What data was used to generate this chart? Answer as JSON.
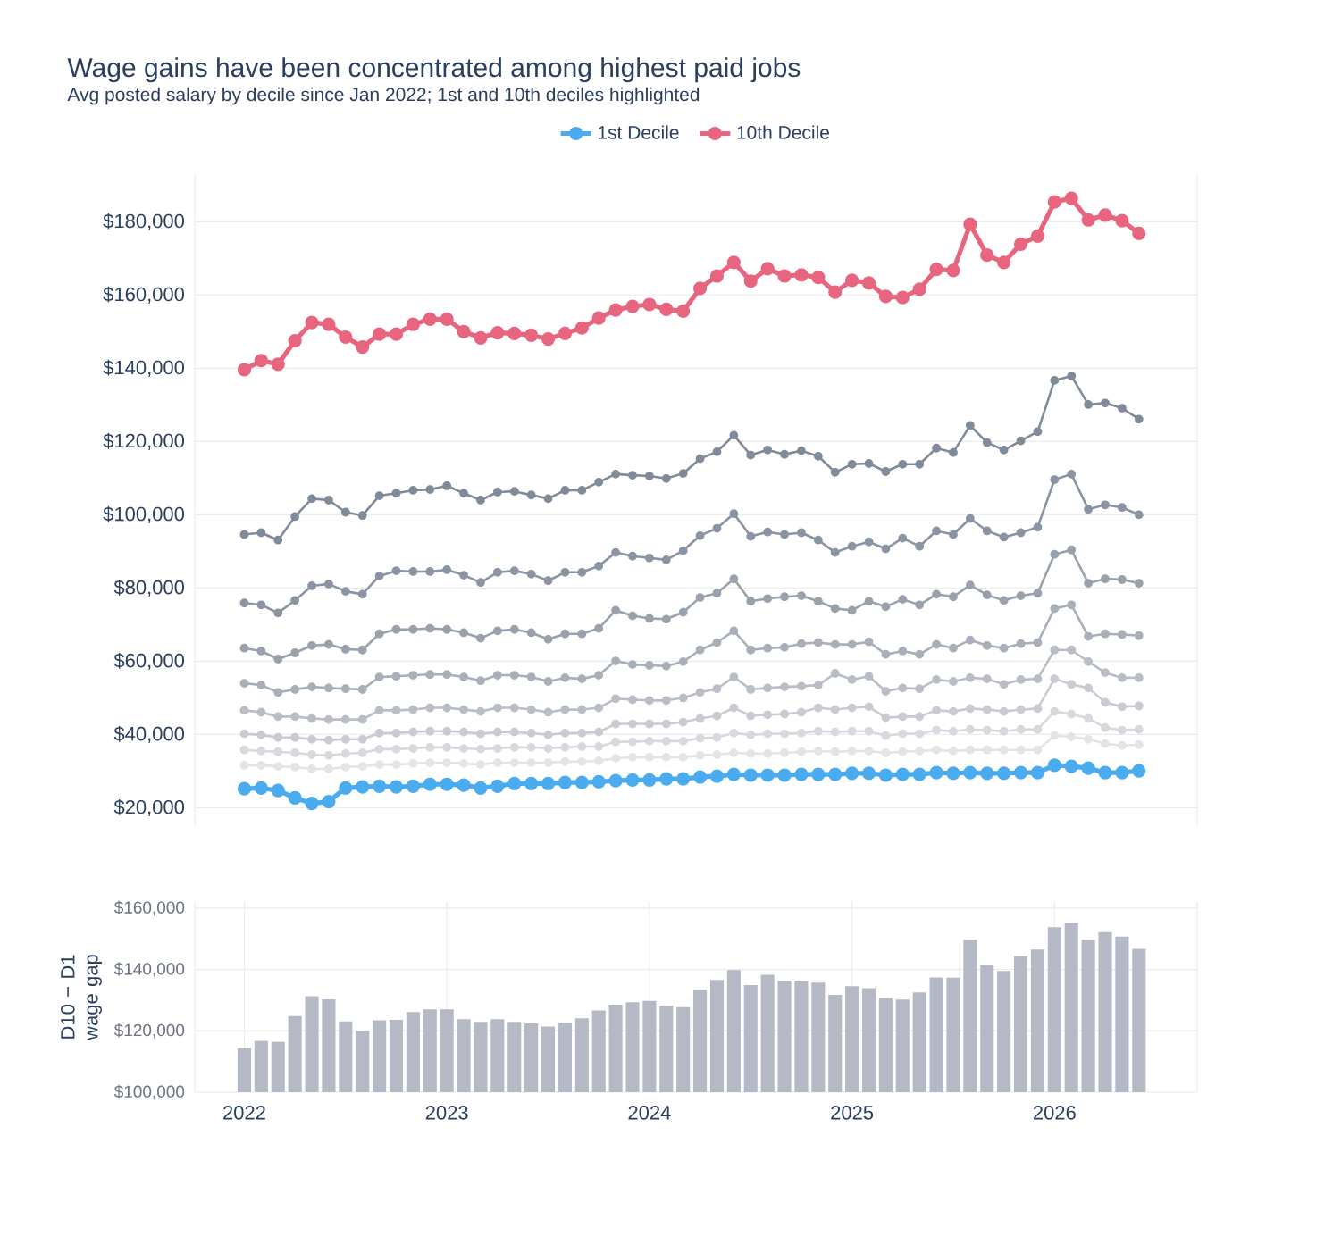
{
  "chart_data": [
    {
      "type": "line",
      "title": "Wage gains have been concentrated among highest paid jobs",
      "subtitle": "Avg posted salary by decile since Jan 2022; 1st and 10th deciles highlighted",
      "x": [
        "2022-01",
        "2022-02",
        "2022-03",
        "2022-04",
        "2022-05",
        "2022-06",
        "2022-07",
        "2022-08",
        "2022-09",
        "2022-10",
        "2022-11",
        "2022-12",
        "2023-01",
        "2023-02",
        "2023-03",
        "2023-04",
        "2023-05",
        "2023-06",
        "2023-07",
        "2023-08",
        "2023-09",
        "2023-10",
        "2023-11",
        "2023-12",
        "2024-01",
        "2024-02",
        "2024-03",
        "2024-04",
        "2024-05",
        "2024-06",
        "2024-07",
        "2024-08",
        "2024-09",
        "2024-10",
        "2024-11",
        "2024-12",
        "2025-01",
        "2025-02",
        "2025-03",
        "2025-04",
        "2025-05",
        "2025-06",
        "2025-07",
        "2025-08",
        "2025-09",
        "2025-10",
        "2025-11",
        "2025-12",
        "2026-01",
        "2026-02",
        "2026-03",
        "2026-04",
        "2026-05",
        "2026-06"
      ],
      "xlim": [
        "2021-10-03",
        "2026-09-15"
      ],
      "ylim": [
        15000,
        193000
      ],
      "yticks": [
        {
          "value": 20000,
          "label": "$20,000"
        },
        {
          "value": 40000,
          "label": "$40,000"
        },
        {
          "value": 60000,
          "label": "$60,000"
        },
        {
          "value": 80000,
          "label": "$80,000"
        },
        {
          "value": 100000,
          "label": "$100,000"
        },
        {
          "value": 120000,
          "label": "$120,000"
        },
        {
          "value": 140000,
          "label": "$140,000"
        },
        {
          "value": 160000,
          "label": "$160,000"
        },
        {
          "value": 180000,
          "label": "$180,000"
        }
      ],
      "grid": "y",
      "legend": "top",
      "marker": "circle",
      "tick_labels": "y",
      "series": [
        {
          "color": "#e2e4e8",
          "values": [
            31600,
            31600,
            31300,
            31100,
            30600,
            30600,
            31100,
            31300,
            31800,
            31800,
            32100,
            32300,
            32300,
            32100,
            31800,
            32300,
            32300,
            32300,
            32300,
            32600,
            32600,
            32800,
            33500,
            33800,
            33800,
            33800,
            33800,
            34300,
            34500,
            35000,
            34800,
            34800,
            35000,
            35300,
            35500,
            35300,
            35500,
            35500,
            35000,
            35300,
            35500,
            35800,
            35500,
            35800,
            35800,
            35800,
            35800,
            35800,
            39700,
            39400,
            38700,
            37500,
            37000,
            37200
          ]
        },
        {
          "color": "#d6d9de",
          "values": [
            35800,
            35500,
            35300,
            35000,
            34500,
            34300,
            34800,
            35000,
            36000,
            36000,
            36200,
            36500,
            36500,
            36200,
            36000,
            36200,
            36500,
            36500,
            36200,
            36500,
            36700,
            36700,
            38000,
            38000,
            38200,
            38200,
            38200,
            39000,
            39200,
            40400,
            39900,
            40200,
            40200,
            40400,
            40900,
            40700,
            40900,
            40900,
            39700,
            40200,
            40200,
            41200,
            40900,
            41400,
            41200,
            40900,
            41400,
            41400,
            46300,
            45600,
            44400,
            41900,
            41200,
            41400
          ]
        },
        {
          "color": "#c8ccd2",
          "values": [
            40200,
            39900,
            39200,
            39200,
            38700,
            38500,
            38700,
            38700,
            40400,
            40400,
            40700,
            40900,
            40900,
            40700,
            40200,
            40700,
            40700,
            40400,
            39900,
            40400,
            40400,
            40700,
            42900,
            42900,
            42900,
            42900,
            43400,
            44400,
            45100,
            47300,
            45100,
            45400,
            45600,
            46100,
            47300,
            46800,
            47300,
            47600,
            44600,
            44900,
            44900,
            46600,
            46300,
            47100,
            46800,
            46300,
            46800,
            47100,
            55200,
            53700,
            52700,
            48800,
            47600,
            47800
          ]
        },
        {
          "color": "#b9bec6",
          "values": [
            46600,
            46100,
            44900,
            44900,
            44400,
            44100,
            44100,
            44100,
            46600,
            46600,
            46800,
            47300,
            47300,
            46800,
            46300,
            47300,
            47300,
            46800,
            46100,
            46800,
            46800,
            47300,
            49800,
            49500,
            49300,
            49300,
            50000,
            51500,
            52500,
            55700,
            52300,
            52700,
            53000,
            53200,
            53500,
            56700,
            55000,
            55900,
            51800,
            52700,
            52500,
            55000,
            54500,
            55500,
            55200,
            53700,
            55000,
            55200,
            63100,
            63100,
            59900,
            56900,
            55500,
            55500
          ]
        },
        {
          "color": "#a9afb9",
          "values": [
            54000,
            53500,
            51500,
            52300,
            53000,
            52700,
            52500,
            52300,
            55700,
            55900,
            56200,
            56400,
            56400,
            55700,
            54700,
            56200,
            56200,
            55700,
            54500,
            55500,
            55200,
            56200,
            60100,
            59100,
            58900,
            58700,
            59900,
            63100,
            65100,
            68300,
            63100,
            63600,
            63800,
            64800,
            65100,
            64600,
            64600,
            65300,
            61900,
            62800,
            61900,
            64600,
            63600,
            65800,
            64300,
            63600,
            64800,
            65100,
            74400,
            75400,
            66800,
            67500,
            67300,
            67000
          ]
        },
        {
          "color": "#99a1ad",
          "values": [
            63600,
            62800,
            60600,
            62300,
            64300,
            64600,
            63300,
            63100,
            67500,
            68700,
            68700,
            69000,
            68700,
            67800,
            66300,
            68300,
            68700,
            67800,
            66000,
            67500,
            67500,
            69000,
            73900,
            72400,
            71700,
            71500,
            73400,
            77400,
            78600,
            82500,
            76400,
            77100,
            77600,
            77900,
            76400,
            74400,
            73900,
            76400,
            74900,
            76900,
            75400,
            78300,
            77600,
            80800,
            78100,
            76600,
            77900,
            78600,
            89200,
            90400,
            81300,
            82500,
            82300,
            81300
          ]
        },
        {
          "color": "#8a94a2",
          "values": [
            75900,
            75400,
            73200,
            76600,
            80600,
            81100,
            79100,
            78300,
            83300,
            84700,
            84500,
            84500,
            85000,
            83500,
            81500,
            84300,
            84700,
            83800,
            82000,
            84300,
            84300,
            86000,
            89700,
            88700,
            88200,
            87700,
            90200,
            94300,
            96300,
            100300,
            94100,
            95300,
            94600,
            95100,
            93100,
            89700,
            91400,
            92600,
            90700,
            93600,
            91400,
            95600,
            94600,
            99000,
            95600,
            93900,
            95100,
            96600,
            109600,
            111100,
            101500,
            102700,
            102000,
            100000
          ]
        },
        {
          "color": "#808b99",
          "values": [
            94600,
            95100,
            93100,
            99500,
            104400,
            104000,
            100700,
            99800,
            105200,
            105900,
            106700,
            106900,
            107900,
            105900,
            104000,
            106200,
            106400,
            105400,
            104400,
            106700,
            106700,
            108900,
            111100,
            110800,
            110600,
            109900,
            111300,
            115300,
            117200,
            121700,
            116300,
            117700,
            116500,
            117500,
            116000,
            111600,
            113800,
            114000,
            111800,
            113800,
            113800,
            118200,
            117000,
            124400,
            119700,
            117700,
            120200,
            122700,
            136700,
            137900,
            130100,
            130500,
            129100,
            126100
          ]
        },
        {
          "name": "1st Decile",
          "color": "#4aabef",
          "values": [
            25200,
            25400,
            24700,
            22700,
            21200,
            21700,
            25400,
            25700,
            25900,
            25700,
            25900,
            26400,
            26400,
            26200,
            25400,
            25900,
            26600,
            26600,
            26600,
            26900,
            26900,
            27100,
            27400,
            27600,
            27600,
            27900,
            27900,
            28400,
            28600,
            29100,
            28900,
            28900,
            28900,
            29100,
            29100,
            29100,
            29400,
            29400,
            28900,
            29100,
            29100,
            29600,
            29400,
            29600,
            29400,
            29400,
            29600,
            29600,
            31600,
            31300,
            30800,
            29600,
            29600,
            30100
          ]
        },
        {
          "name": "10th Decile",
          "color": "#e8657f",
          "values": [
            139600,
            142100,
            141100,
            147500,
            152500,
            152000,
            148500,
            145800,
            149300,
            149300,
            152000,
            153400,
            153400,
            150000,
            148300,
            149700,
            149500,
            149000,
            148000,
            149500,
            151000,
            153700,
            155900,
            156900,
            157400,
            156100,
            155600,
            161800,
            165200,
            168900,
            163800,
            167200,
            165200,
            165500,
            164800,
            160800,
            164000,
            163300,
            159600,
            159300,
            161600,
            167000,
            166700,
            179300,
            170900,
            168900,
            173900,
            176100,
            185400,
            186400,
            180500,
            181800,
            180300,
            176800
          ]
        }
      ]
    },
    {
      "type": "bar",
      "ylabel": "D10 − D1 wage gap",
      "color": "#b4b9c5",
      "x": [
        "2022-01",
        "2022-02",
        "2022-03",
        "2022-04",
        "2022-05",
        "2022-06",
        "2022-07",
        "2022-08",
        "2022-09",
        "2022-10",
        "2022-11",
        "2022-12",
        "2023-01",
        "2023-02",
        "2023-03",
        "2023-04",
        "2023-05",
        "2023-06",
        "2023-07",
        "2023-08",
        "2023-09",
        "2023-10",
        "2023-11",
        "2023-12",
        "2024-01",
        "2024-02",
        "2024-03",
        "2024-04",
        "2024-05",
        "2024-06",
        "2024-07",
        "2024-08",
        "2024-09",
        "2024-10",
        "2024-11",
        "2024-12",
        "2025-01",
        "2025-02",
        "2025-03",
        "2025-04",
        "2025-05",
        "2025-06",
        "2025-07",
        "2025-08",
        "2025-09",
        "2025-10",
        "2025-11",
        "2025-12",
        "2026-01",
        "2026-02",
        "2026-03",
        "2026-04",
        "2026-05",
        "2026-06"
      ],
      "values": [
        114400,
        116700,
        116400,
        124800,
        131300,
        130300,
        123100,
        120100,
        123400,
        123600,
        126100,
        127000,
        127000,
        123800,
        122900,
        123800,
        122900,
        122400,
        121400,
        122600,
        124100,
        126600,
        128500,
        129300,
        129800,
        128200,
        127700,
        133400,
        136600,
        139800,
        134900,
        138300,
        136300,
        136400,
        135700,
        131700,
        134600,
        133900,
        130700,
        130200,
        132500,
        137400,
        137300,
        149700,
        141500,
        139500,
        144300,
        146500,
        153800,
        155100,
        149700,
        152200,
        150700,
        146700
      ],
      "xlim": [
        "2021-10-03",
        "2026-09-15"
      ],
      "xticks": [
        "2022",
        "2023",
        "2024",
        "2025",
        "2026"
      ],
      "ylim": [
        100000,
        162000
      ],
      "yticks": [
        {
          "value": 100000,
          "label": "$100,000"
        },
        {
          "value": 120000,
          "label": "$120,000"
        },
        {
          "value": 140000,
          "label": "$140,000"
        },
        {
          "value": 160000,
          "label": "$160,000"
        }
      ],
      "grid": true
    }
  ]
}
